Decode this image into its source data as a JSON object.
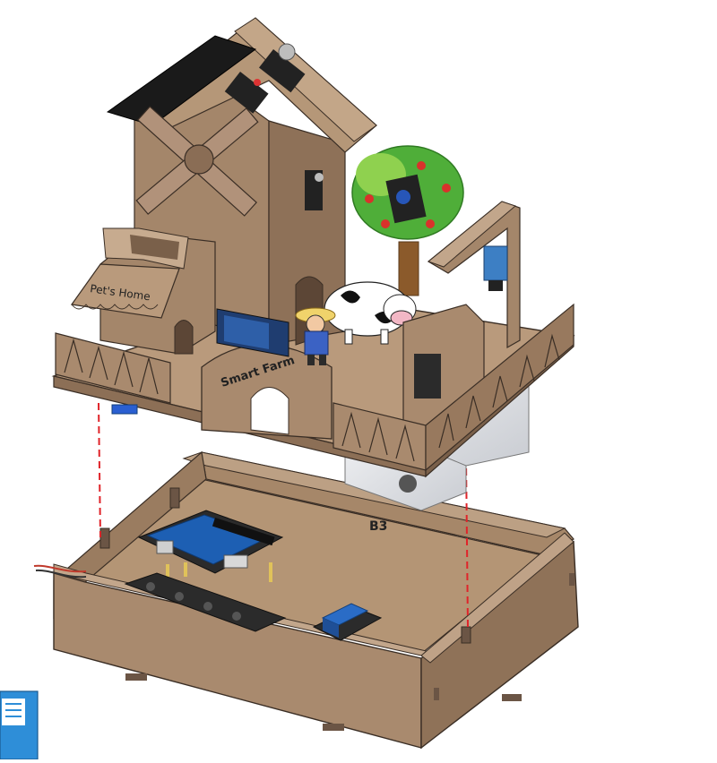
{
  "figure": {
    "signs": {
      "pets_home": "Pet's Home",
      "smart_farm": "Smart Farm"
    },
    "labels": {
      "base_part": "B3"
    }
  },
  "colors": {
    "wood": "#a98a6e",
    "wood_dark": "#7f6651",
    "wood_light": "#c2a68b",
    "outline": "#3a2e25",
    "guide_line": "#e0242a",
    "board_pcb": "#2b2b2b",
    "shield_blue": "#1d5fb3",
    "relay_blue": "#2a6cc6",
    "tree_green": "#4fae39",
    "apple_red": "#d9322b",
    "solar_panel": "#1a1a1a",
    "battery_blue": "#2e8ed8"
  },
  "icons": [
    "windmill-icon",
    "tree-icon",
    "cow-icon",
    "farmer-icon",
    "solar-panel-icon",
    "relay-module-icon",
    "controller-board-icon",
    "servo-icon",
    "sensor-icon"
  ]
}
